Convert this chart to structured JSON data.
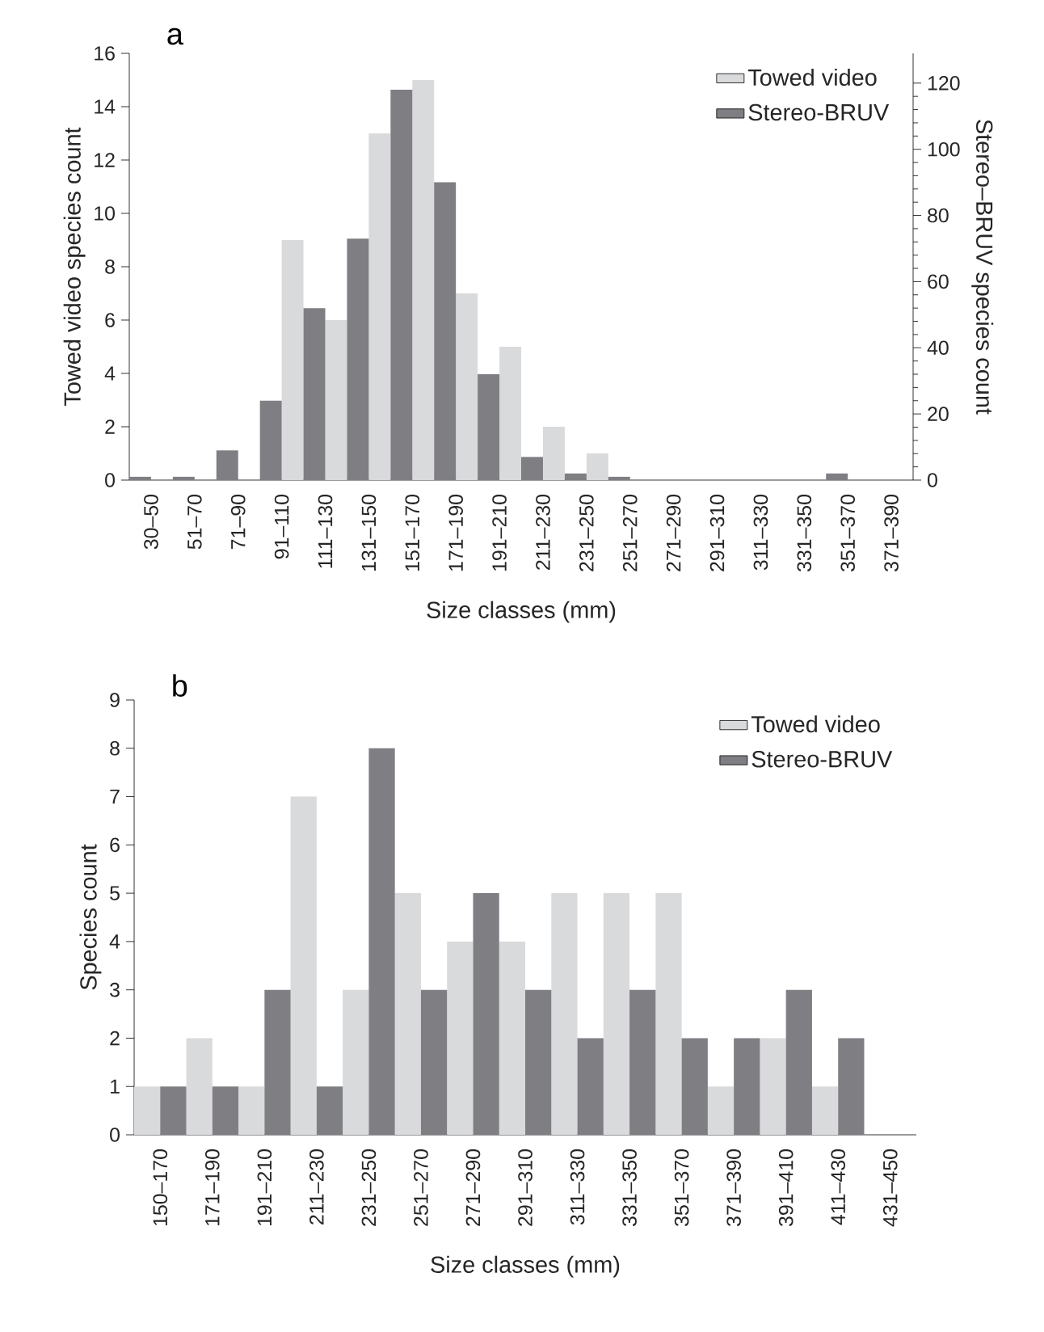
{
  "chart_data": [
    {
      "type": "bar",
      "title": "a",
      "xlabel": "Size classes (mm)",
      "ylabel": "Towed video species count",
      "y2label": "Stereo–BRUV species count",
      "categories": [
        "30–50",
        "51–70",
        "71–90",
        "91–110",
        "111–130",
        "131–150",
        "151–170",
        "171–190",
        "191–210",
        "211–230",
        "231–250",
        "251–270",
        "271–290",
        "291–310",
        "311–330",
        "331–350",
        "351–370",
        "371–390"
      ],
      "series": [
        {
          "name": "Towed video",
          "color": "#d9dadc",
          "values": [
            0,
            0,
            0,
            9,
            6,
            13,
            15,
            7,
            5,
            2,
            1,
            0,
            0,
            0,
            0,
            0,
            0,
            0
          ]
        },
        {
          "name": "Stereo-BRUV",
          "color": "#7f7e83",
          "axis": "y2",
          "values": [
            1,
            1,
            9,
            24,
            52,
            73,
            118,
            90,
            32,
            7,
            2,
            1,
            0,
            0,
            0,
            0,
            2,
            0
          ]
        }
      ],
      "ylim": [
        0,
        16
      ],
      "yticks": [
        0,
        2,
        4,
        6,
        8,
        10,
        12,
        14,
        16
      ],
      "y2lim": [
        0,
        129
      ],
      "y2ticks": [
        0,
        20,
        40,
        60,
        80,
        100,
        120
      ],
      "legend": "top right"
    },
    {
      "type": "bar",
      "title": "b",
      "xlabel": "Size classes (mm)",
      "ylabel": "Species count",
      "categories": [
        "150–170",
        "171–190",
        "191–210",
        "211–230",
        "231–250",
        "251–270",
        "271–290",
        "291–310",
        "311–330",
        "331–350",
        "351–370",
        "371–390",
        "391–410",
        "411–430",
        "431–450"
      ],
      "series": [
        {
          "name": "Towed video",
          "color": "#d9dadc",
          "values": [
            1,
            2,
            1,
            7,
            3,
            5,
            4,
            4,
            5,
            5,
            5,
            1,
            2,
            1,
            0
          ]
        },
        {
          "name": "Stereo-BRUV",
          "color": "#7f7e83",
          "values": [
            1,
            1,
            3,
            1,
            8,
            3,
            5,
            3,
            2,
            3,
            2,
            2,
            3,
            2,
            0
          ]
        }
      ],
      "ylim": [
        0,
        9
      ],
      "yticks": [
        0,
        1,
        2,
        3,
        4,
        5,
        6,
        7,
        8,
        9
      ],
      "legend": "top right"
    }
  ]
}
